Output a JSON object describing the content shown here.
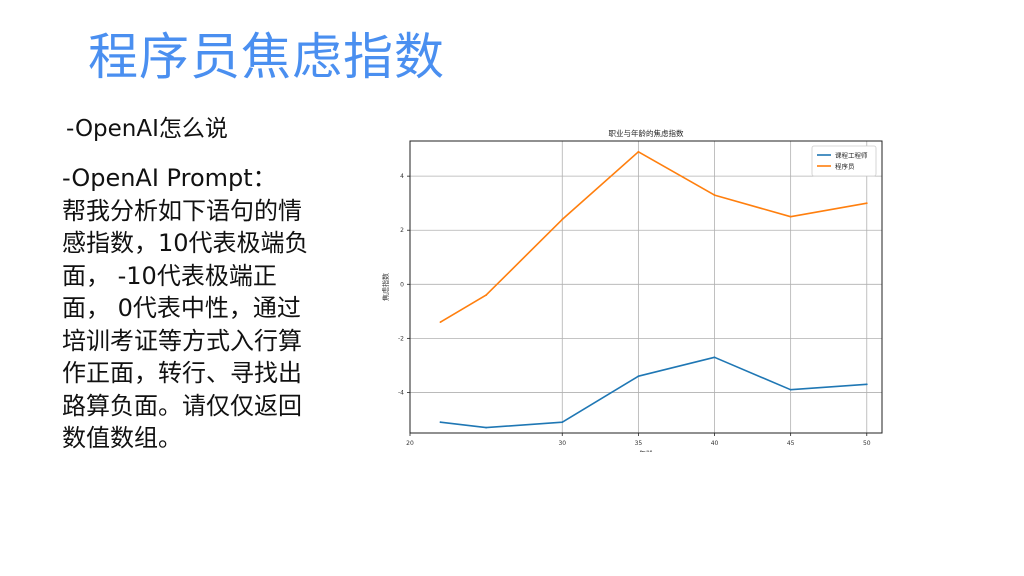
{
  "slide": {
    "title": "程序员焦虑指数",
    "subtitle": "-OpenAI怎么说",
    "body_lines": [
      "-OpenAI Prompt：",
      "帮我分析如下语句的情",
      "感指数，10代表极端负",
      "面，  -10代表极端正",
      "面，  0代表中性，通过",
      "培训考证等方式入行算",
      "作正面，转行、寻找出",
      "路算负面。请仅仅返回",
      "数值数组。"
    ]
  },
  "chart_data": {
    "type": "line",
    "title": "职业与年龄的焦虑指数",
    "xlabel": "年龄",
    "ylabel": "焦虑指数",
    "xlim": [
      20,
      51
    ],
    "ylim": [
      -5.5,
      5.3
    ],
    "xticks": [
      20,
      30,
      35,
      40,
      45,
      50
    ],
    "yticks": [
      -4,
      -2,
      0,
      2,
      4
    ],
    "grid": true,
    "legend_position": "top-right",
    "series": [
      {
        "name": "课程工程师",
        "color": "#1f77b4",
        "x": [
          22,
          25,
          30,
          35,
          40,
          45,
          50
        ],
        "y": [
          -5.1,
          -5.3,
          -5.1,
          -3.4,
          -2.7,
          -3.9,
          -3.7
        ]
      },
      {
        "name": "程序员",
        "color": "#ff7f0e",
        "x": [
          22,
          25,
          30,
          35,
          40,
          45,
          50
        ],
        "y": [
          -1.4,
          -0.4,
          2.4,
          4.9,
          3.3,
          2.5,
          3.0
        ]
      }
    ]
  }
}
